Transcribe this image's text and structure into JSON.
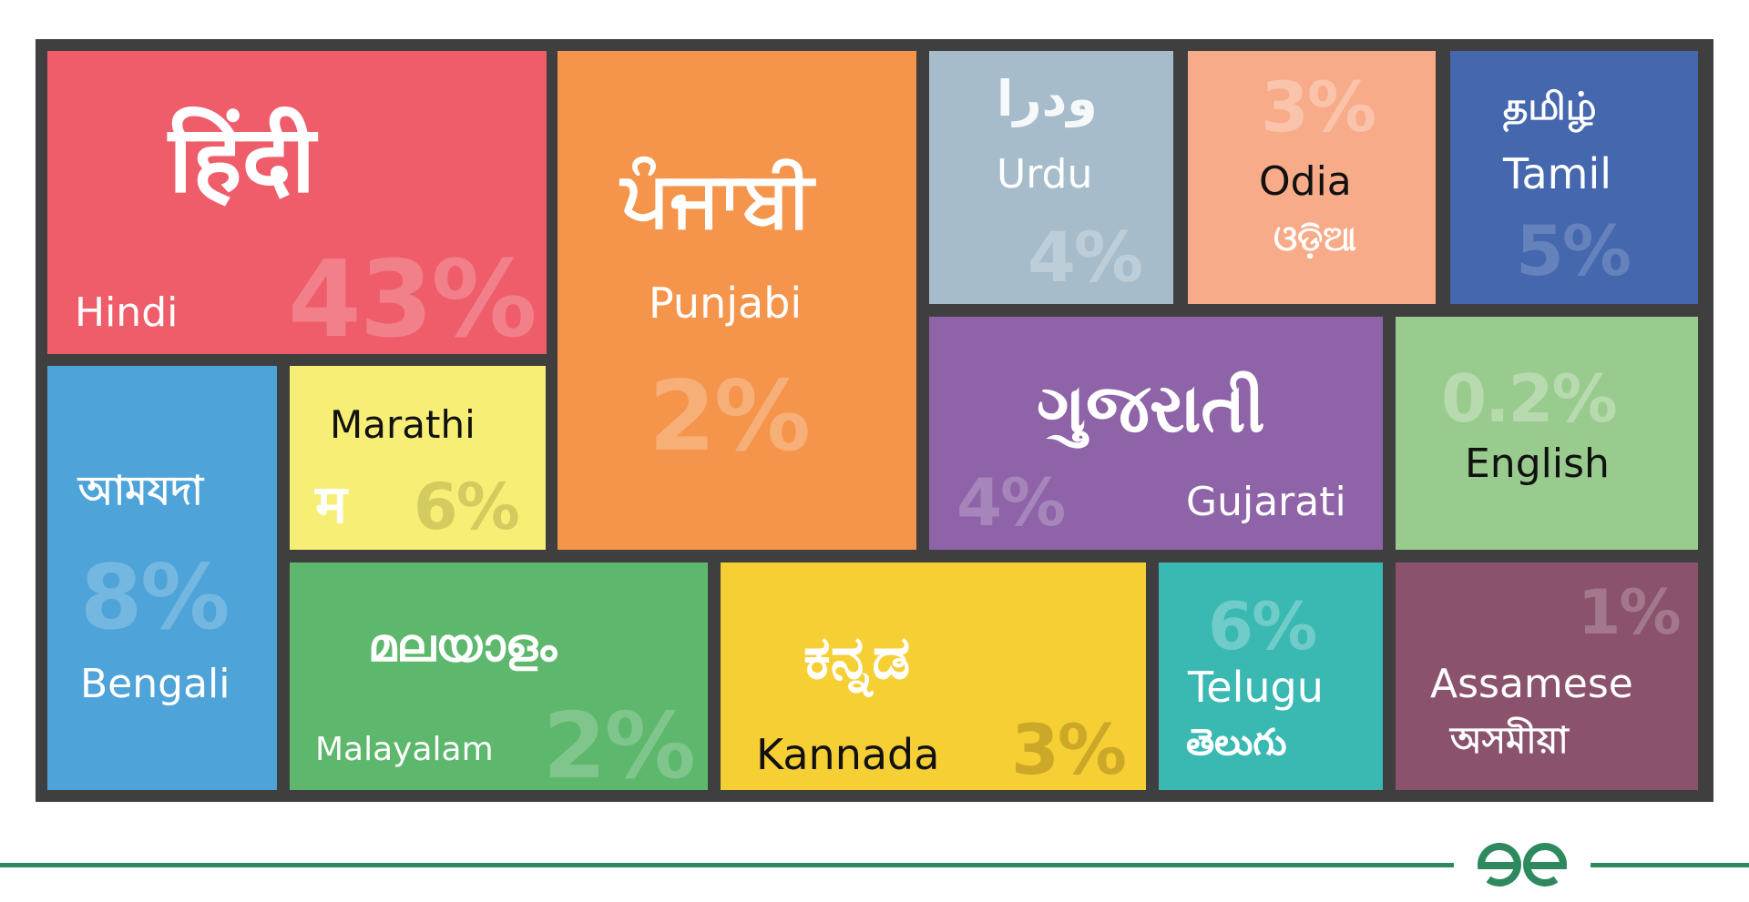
{
  "chart_data": {
    "type": "treemap",
    "tiles": [
      {
        "key": "hindi",
        "english": "Hindi",
        "native": "हिंदी",
        "percent": "43%",
        "color": "#ef5d6b"
      },
      {
        "key": "punjabi",
        "english": "Punjabi",
        "native": "ਪੰਜਾਬੀ",
        "percent": "2%",
        "color": "#f5944b"
      },
      {
        "key": "urdu",
        "english": "Urdu",
        "native": "ودرا",
        "percent": "4%",
        "color": "#a6bccb"
      },
      {
        "key": "odia",
        "english": "Odia",
        "native": "ଓଡ଼ିଆ",
        "percent": "3%",
        "color": "#f8ab88"
      },
      {
        "key": "tamil",
        "english": "Tamil",
        "native": "தமிழ்",
        "percent": "5%",
        "color": "#4467ae"
      },
      {
        "key": "bengali",
        "english": "Bengali",
        "native": "আমযদা",
        "percent": "8%",
        "color": "#4ea3d8"
      },
      {
        "key": "marathi",
        "english": "Marathi",
        "native": "म",
        "percent": "6%",
        "color": "#f7ef75"
      },
      {
        "key": "gujarati",
        "english": "Gujarati",
        "native": "ગુજરાતી",
        "percent": "4%",
        "color": "#8e63a8"
      },
      {
        "key": "english",
        "english": "English",
        "native": "",
        "percent": "0.2%",
        "color": "#98cb8d"
      },
      {
        "key": "malayalam",
        "english": "Malayalam",
        "native": "മലയാളം",
        "percent": "2%",
        "color": "#5db76c"
      },
      {
        "key": "kannada",
        "english": "Kannada",
        "native": "ಕನ್ನಡ",
        "percent": "3%",
        "color": "#f6cf35"
      },
      {
        "key": "telugu",
        "english": "Telugu",
        "native": "తెలుగు",
        "percent": "6%",
        "color": "#3ab9b3"
      },
      {
        "key": "assamese",
        "english": "Assamese",
        "native": "অসমীয়া",
        "percent": "1%",
        "color": "#8a526c"
      }
    ]
  },
  "branding": {
    "logo": "GfG",
    "logo_icon": "geeksforgeeks-logo-icon",
    "accent_color": "#2e8a5e"
  }
}
